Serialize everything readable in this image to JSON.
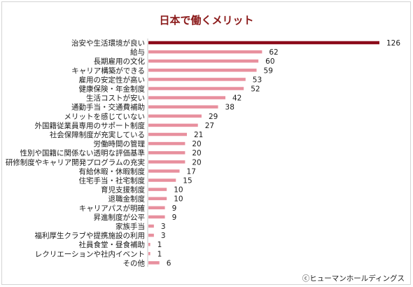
{
  "chart_data": {
    "type": "bar",
    "orientation": "horizontal",
    "title": "日本で働くメリット",
    "credit": "ⓒヒューマンホールディングス",
    "categories": [
      "治安や生活環境が良い",
      "給与",
      "長期雇用の文化",
      "キャリア構築ができる",
      "雇用の安定性が高い",
      "健康保険・年金制度",
      "生活コストが安い",
      "通勤手当・交通費補助",
      "メリットを感じていない",
      "外国籍従業員専用のサポート制度",
      "社会保障制度が充実している",
      "労働時間の管理",
      "性別や国籍に関係ない透明な評価基準",
      "研修制度やキャリア開発プログラムの充実",
      "有給休暇・休暇制度",
      "住宅手当・社宅制度",
      "育児支援制度",
      "退職金制度",
      "キャリアパスが明確",
      "昇進制度が公平",
      "家族手当",
      "福利厚生クラブや提携施設の利用",
      "社員食堂・昼食補助",
      "レクリエーションや社内イベント",
      "その他"
    ],
    "values": [
      126,
      62,
      60,
      59,
      53,
      52,
      42,
      38,
      29,
      27,
      21,
      20,
      20,
      20,
      17,
      15,
      10,
      10,
      9,
      9,
      3,
      3,
      1,
      1,
      6
    ],
    "xlim": [
      0,
      126
    ],
    "grid": false,
    "colors": {
      "highlight": "#8b0a1a",
      "bar": "#e8909e"
    }
  }
}
